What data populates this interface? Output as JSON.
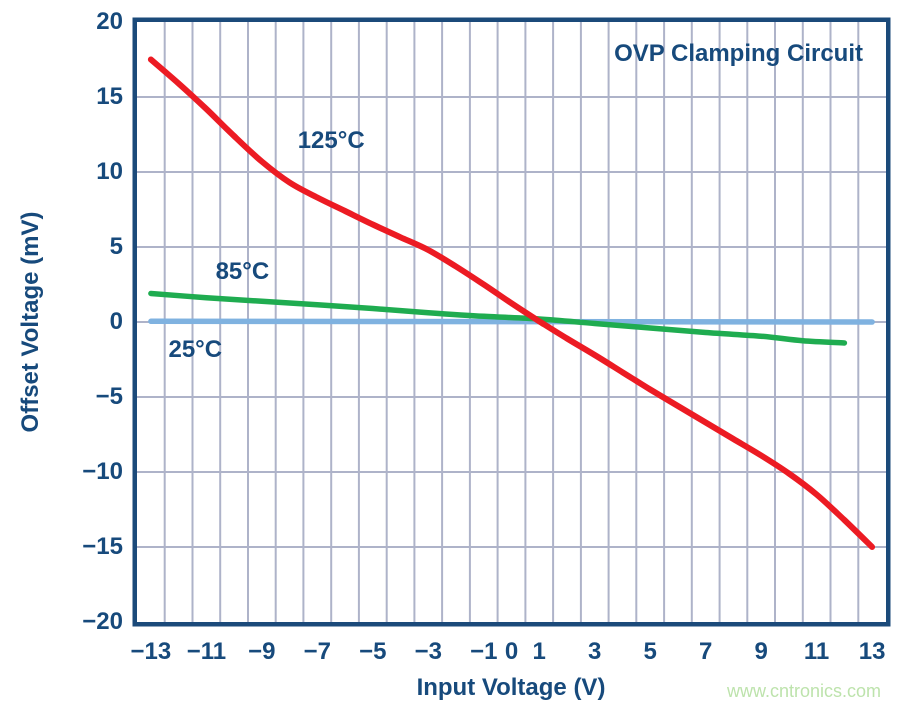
{
  "chart_data": {
    "type": "line",
    "title": "OVP Clamping Circuit",
    "xlabel": "Input Voltage (V)",
    "ylabel": "Offset Voltage (mV)",
    "watermark": "www.cntronics.com",
    "xlim": [
      -13.5,
      13.5
    ],
    "ylim": [
      -20,
      20
    ],
    "grid": {
      "x_step": 1,
      "y_step": 5,
      "on": true
    },
    "legend_position": "inline-labels",
    "colors": {
      "text": "#174A7C",
      "frame": "#1B4A7A",
      "grid": "#AEB3C9",
      "watermark": "#BDE3AC",
      "series_125c": "#EC1B23",
      "series_85c": "#1FAC50",
      "series_25c": "#7FB2E0"
    },
    "x_tick_values": [
      -13,
      -11,
      -9,
      -7,
      -5,
      -3,
      -1,
      0,
      1,
      3,
      5,
      7,
      9,
      11,
      13
    ],
    "x_tick_labels": [
      "−13",
      "−11",
      "−9",
      "−7",
      "−5",
      "−3",
      "−1",
      "0",
      "1",
      "3",
      "5",
      "7",
      "9",
      "11",
      "13"
    ],
    "y_tick_values": [
      20,
      15,
      10,
      5,
      0,
      -5,
      -10,
      -15,
      -20
    ],
    "y_tick_labels": [
      "20",
      "15",
      "10",
      "5",
      "0",
      "−5",
      "−10",
      "−15",
      "−20"
    ],
    "series": [
      {
        "id": "25c",
        "name": "25°C",
        "color": "#7FB2E0",
        "width": 5.5,
        "label": {
          "text": "25°C",
          "x": -11.4,
          "y": -1.85
        },
        "points": [
          [
            -13,
            0.05
          ],
          [
            13,
            0.0
          ]
        ]
      },
      {
        "id": "85c",
        "name": "85°C",
        "color": "#1FAC50",
        "width": 5.5,
        "label": {
          "text": "85°C",
          "x": -9.7,
          "y": 3.35
        },
        "points": [
          [
            -13,
            1.9
          ],
          [
            -11,
            1.62
          ],
          [
            -9,
            1.38
          ],
          [
            -7,
            1.15
          ],
          [
            -5,
            0.9
          ],
          [
            -3,
            0.62
          ],
          [
            -1,
            0.38
          ],
          [
            1,
            0.2
          ],
          [
            3,
            -0.1
          ],
          [
            5,
            -0.4
          ],
          [
            7,
            -0.7
          ],
          [
            9,
            -0.95
          ],
          [
            10.5,
            -1.25
          ],
          [
            12,
            -1.4
          ]
        ]
      },
      {
        "id": "125c",
        "name": "125°C",
        "color": "#EC1B23",
        "width": 6,
        "label": {
          "text": "125°C",
          "x": -6.5,
          "y": 12.1
        },
        "points": [
          [
            -13,
            17.5
          ],
          [
            -12,
            15.9
          ],
          [
            -11,
            14.2
          ],
          [
            -10,
            12.4
          ],
          [
            -9,
            10.7
          ],
          [
            -8,
            9.3
          ],
          [
            -7,
            8.3
          ],
          [
            -6,
            7.4
          ],
          [
            -5,
            6.5
          ],
          [
            -4,
            5.65
          ],
          [
            -3,
            4.8
          ],
          [
            -2,
            3.7
          ],
          [
            -1,
            2.5
          ],
          [
            0,
            1.25
          ],
          [
            1,
            0.05
          ],
          [
            2,
            -1.1
          ],
          [
            3,
            -2.2
          ],
          [
            4,
            -3.35
          ],
          [
            5,
            -4.5
          ],
          [
            6,
            -5.6
          ],
          [
            7,
            -6.7
          ],
          [
            8,
            -7.8
          ],
          [
            9,
            -8.9
          ],
          [
            10,
            -10.1
          ],
          [
            11,
            -11.5
          ],
          [
            12,
            -13.2
          ],
          [
            13,
            -15.0
          ]
        ]
      }
    ]
  }
}
